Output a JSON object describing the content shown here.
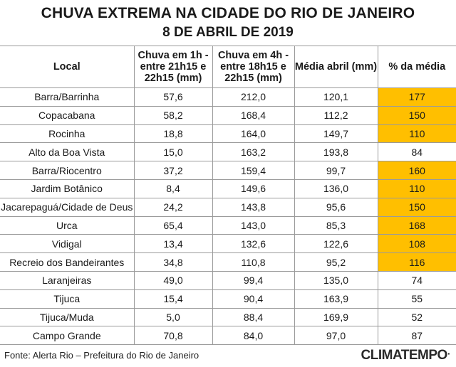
{
  "title": "CHUVA EXTREMA NA CIDADE DO RIO DE JANEIRO",
  "subtitle": "8 DE ABRIL DE 2019",
  "headers": [
    "Local",
    "Chuva em 1h - entre 21h15 e 22h15 (mm)",
    "Chuva em 4h - entre 18h15 e 22h15 (mm)",
    "Média abril (mm)",
    "% da média"
  ],
  "rows": [
    {
      "local": "Barra/Barrinha",
      "c1h": "57,6",
      "c4h": "212,0",
      "media": "120,1",
      "pct": "177",
      "highlight": true
    },
    {
      "local": "Copacabana",
      "c1h": "58,2",
      "c4h": "168,4",
      "media": "112,2",
      "pct": "150",
      "highlight": true
    },
    {
      "local": "Rocinha",
      "c1h": "18,8",
      "c4h": "164,0",
      "media": "149,7",
      "pct": "110",
      "highlight": true
    },
    {
      "local": "Alto da Boa Vista",
      "c1h": "15,0",
      "c4h": "163,2",
      "media": "193,8",
      "pct": "84",
      "highlight": false
    },
    {
      "local": "Barra/Riocentro",
      "c1h": "37,2",
      "c4h": "159,4",
      "media": "99,7",
      "pct": "160",
      "highlight": true
    },
    {
      "local": "Jardim Botânico",
      "c1h": "8,4",
      "c4h": "149,6",
      "media": "136,0",
      "pct": "110",
      "highlight": true
    },
    {
      "local": "Jacarepaguá/Cidade de Deus",
      "c1h": "24,2",
      "c4h": "143,8",
      "media": "95,6",
      "pct": "150",
      "highlight": true
    },
    {
      "local": "Urca",
      "c1h": "65,4",
      "c4h": "143,0",
      "media": "85,3",
      "pct": "168",
      "highlight": true
    },
    {
      "local": "Vidigal",
      "c1h": "13,4",
      "c4h": "132,6",
      "media": "122,6",
      "pct": "108",
      "highlight": true
    },
    {
      "local": "Recreio dos Bandeirantes",
      "c1h": "34,8",
      "c4h": "110,8",
      "media": "95,2",
      "pct": "116",
      "highlight": true
    },
    {
      "local": "Laranjeiras",
      "c1h": "49,0",
      "c4h": "99,4",
      "media": "135,0",
      "pct": "74",
      "highlight": false
    },
    {
      "local": "Tijuca",
      "c1h": "15,4",
      "c4h": "90,4",
      "media": "163,9",
      "pct": "55",
      "highlight": false
    },
    {
      "local": "Tijuca/Muda",
      "c1h": "5,0",
      "c4h": "88,4",
      "media": "169,9",
      "pct": "52",
      "highlight": false
    },
    {
      "local": "Campo Grande",
      "c1h": "70,8",
      "c4h": "84,0",
      "media": "97,0",
      "pct": "87",
      "highlight": false
    }
  ],
  "highlight_color": "#ffbf00",
  "footer": "Fonte: Alerta Rio – Prefeitura do Rio de Janeiro",
  "logo": "CLIMATEMPO"
}
